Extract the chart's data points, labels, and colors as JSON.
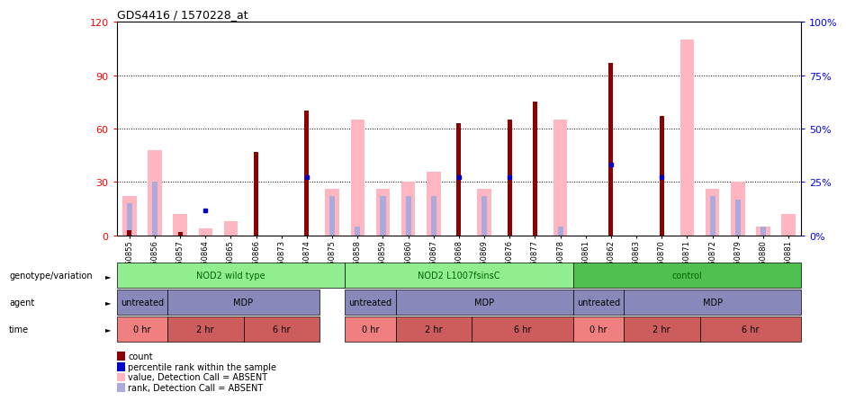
{
  "title": "GDS4416 / 1570228_at",
  "samples": [
    "GSM560855",
    "GSM560856",
    "GSM560857",
    "GSM560864",
    "GSM560865",
    "GSM560866",
    "GSM560873",
    "GSM560874",
    "GSM560875",
    "GSM560858",
    "GSM560859",
    "GSM560860",
    "GSM560867",
    "GSM560868",
    "GSM560869",
    "GSM560876",
    "GSM560877",
    "GSM560878",
    "GSM560861",
    "GSM560862",
    "GSM560863",
    "GSM560870",
    "GSM560871",
    "GSM560872",
    "GSM560879",
    "GSM560880",
    "GSM560881"
  ],
  "count_values": [
    3,
    0,
    2,
    0,
    0,
    47,
    0,
    70,
    0,
    0,
    0,
    0,
    0,
    63,
    0,
    65,
    75,
    0,
    0,
    97,
    0,
    67,
    0,
    0,
    0,
    0,
    0
  ],
  "value_absent": [
    22,
    48,
    12,
    4,
    8,
    0,
    0,
    0,
    26,
    65,
    26,
    30,
    36,
    0,
    26,
    0,
    0,
    65,
    0,
    0,
    0,
    0,
    110,
    26,
    30,
    5,
    12
  ],
  "rank_absent": [
    18,
    30,
    0,
    0,
    0,
    0,
    0,
    0,
    22,
    5,
    22,
    22,
    22,
    0,
    22,
    0,
    0,
    5,
    0,
    0,
    0,
    0,
    0,
    22,
    20,
    5,
    0
  ],
  "blue_dot_visible": [
    false,
    false,
    false,
    true,
    false,
    false,
    false,
    true,
    false,
    false,
    false,
    false,
    false,
    true,
    false,
    true,
    false,
    false,
    false,
    true,
    false,
    true,
    false,
    false,
    false,
    false,
    false
  ],
  "blue_dot_values": [
    0,
    0,
    0,
    14,
    0,
    0,
    0,
    33,
    0,
    0,
    0,
    0,
    0,
    33,
    0,
    33,
    0,
    0,
    0,
    40,
    0,
    33,
    0,
    0,
    0,
    0,
    0
  ],
  "genotype_groups": [
    {
      "label": "NOD2 wild type",
      "start": 0,
      "end": 8,
      "color": "#90EE90",
      "darker": "#50C850"
    },
    {
      "label": "NOD2 L1007fsinsC",
      "start": 9,
      "end": 17,
      "color": "#90EE90",
      "darker": "#50C850"
    },
    {
      "label": "control",
      "start": 18,
      "end": 26,
      "color": "#50C050",
      "darker": "#50C050"
    }
  ],
  "agent_groups": [
    {
      "label": "untreated",
      "start": 0,
      "end": 1,
      "color": "#8888BB"
    },
    {
      "label": "MDP",
      "start": 2,
      "end": 7,
      "color": "#8888BB"
    },
    {
      "label": "untreated",
      "start": 9,
      "end": 10,
      "color": "#8888BB"
    },
    {
      "label": "MDP",
      "start": 11,
      "end": 17,
      "color": "#8888BB"
    },
    {
      "label": "untreated",
      "start": 18,
      "end": 19,
      "color": "#8888BB"
    },
    {
      "label": "MDP",
      "start": 20,
      "end": 26,
      "color": "#8888BB"
    }
  ],
  "time_groups": [
    {
      "label": "0 hr",
      "start": 0,
      "end": 1,
      "color": "#F08080"
    },
    {
      "label": "2 hr",
      "start": 2,
      "end": 4,
      "color": "#CD5C5C"
    },
    {
      "label": "6 hr",
      "start": 5,
      "end": 7,
      "color": "#CD5C5C"
    },
    {
      "label": "0 hr",
      "start": 9,
      "end": 10,
      "color": "#F08080"
    },
    {
      "label": "2 hr",
      "start": 11,
      "end": 13,
      "color": "#CD5C5C"
    },
    {
      "label": "6 hr",
      "start": 14,
      "end": 17,
      "color": "#CD5C5C"
    },
    {
      "label": "0 hr",
      "start": 18,
      "end": 19,
      "color": "#F08080"
    },
    {
      "label": "2 hr",
      "start": 20,
      "end": 22,
      "color": "#CD5C5C"
    },
    {
      "label": "6 hr",
      "start": 23,
      "end": 26,
      "color": "#CD5C5C"
    }
  ],
  "ylim_left": [
    0,
    120
  ],
  "ylim_right": [
    0,
    100
  ],
  "yticks_left": [
    0,
    30,
    60,
    90,
    120
  ],
  "yticks_right": [
    0,
    25,
    50,
    75,
    100
  ],
  "count_color": "#8B0000",
  "value_absent_color": "#FFB6C1",
  "rank_absent_color": "#AAAADD",
  "blue_dot_color": "#0000CD",
  "background_color": "#FFFFFF",
  "chart_bg": "#FFFFFF",
  "legend_items": [
    {
      "color": "#8B0000",
      "label": "count"
    },
    {
      "color": "#0000CD",
      "label": "percentile rank within the sample"
    },
    {
      "color": "#FFB6C1",
      "label": "value, Detection Call = ABSENT"
    },
    {
      "color": "#AAAADD",
      "label": "rank, Detection Call = ABSENT"
    }
  ]
}
